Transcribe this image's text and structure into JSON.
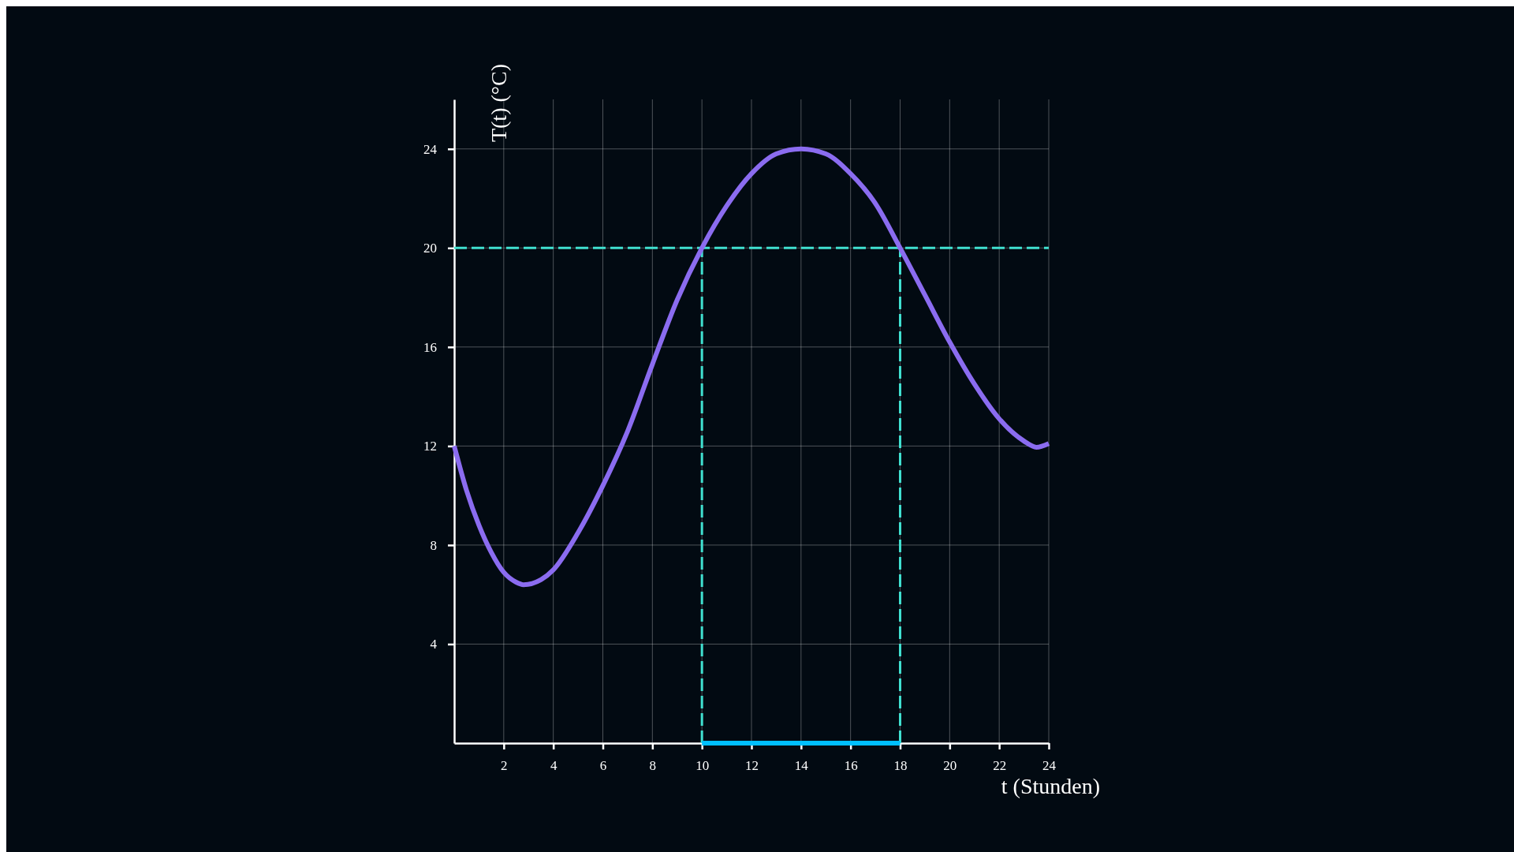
{
  "chart_data": {
    "type": "line",
    "xlabel": "t (Stunden)",
    "ylabel": "T(t) (°C)",
    "x": [
      0,
      0.5,
      1,
      1.5,
      2,
      2.5,
      2.8,
      3.5,
      4,
      5,
      6,
      7,
      8,
      9,
      10,
      11,
      12,
      13,
      14,
      15,
      16,
      17,
      18,
      19,
      20,
      21,
      22,
      23,
      23.5,
      24
    ],
    "series": [
      {
        "type": "line",
        "x": [
          0,
          24
        ],
        "values": [
          20,
          20
        ],
        "color": "#40e0d0",
        "line_style": "dashed"
      },
      {
        "type": "line",
        "x": [
          10,
          10
        ],
        "values": [
          0,
          20
        ],
        "color": "#40e0d0",
        "line_style": "dashed"
      },
      {
        "type": "line",
        "x": [
          18,
          18
        ],
        "values": [
          0,
          20
        ],
        "color": "#40e0d0",
        "line_style": "dashed"
      },
      {
        "type": "line",
        "x": [
          10,
          18
        ],
        "values": [
          0,
          0
        ],
        "color": "#00bfff"
      },
      {
        "color": "#8b6cf0",
        "values": [
          12,
          10.2,
          8.8,
          7.7,
          6.9,
          6.5,
          6.4,
          6.6,
          7,
          8.5,
          10.4,
          12.6,
          15.3,
          17.9,
          20,
          21.7,
          23,
          23.8,
          24,
          23.8,
          23,
          21.8,
          20,
          18.1,
          16.2,
          14.5,
          13.1,
          12.2,
          11.95,
          12.1
        ]
      }
    ],
    "xlim": [
      0,
      24
    ],
    "xticks": [
      2,
      4,
      6,
      8,
      10,
      12,
      14,
      16,
      18,
      20,
      22,
      24
    ],
    "ylim": [
      0,
      26
    ],
    "yticks": [
      4,
      8,
      12,
      16,
      20,
      24
    ],
    "grid": true
  }
}
